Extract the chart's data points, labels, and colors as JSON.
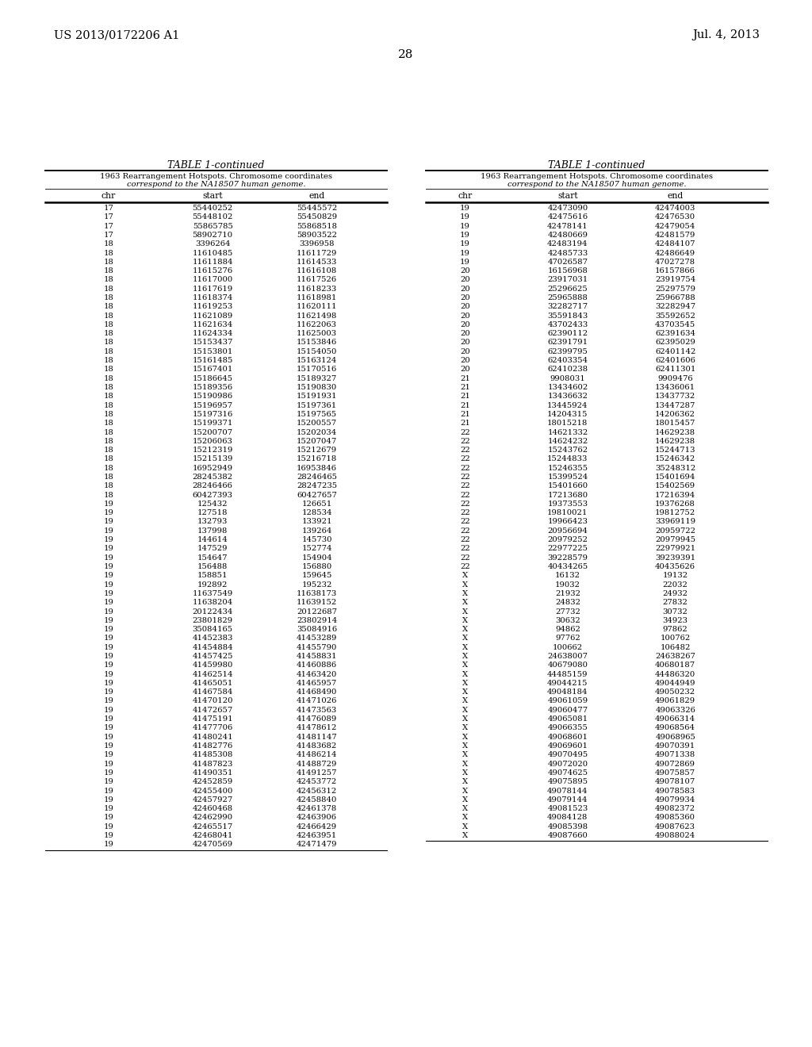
{
  "page_number": "28",
  "patent_left": "US 2013/0172206 A1",
  "patent_right": "Jul. 4, 2013",
  "table_title": "TABLE 1-continued",
  "table_subtitle_1": "1963 Rearrangement Hotspots. Chromosome coordinates",
  "table_subtitle_2": "correspond to the NA18507 human genome.",
  "col_headers": [
    "chr",
    "start",
    "end"
  ],
  "left_data": [
    [
      "17",
      "55440252",
      "55445572"
    ],
    [
      "17",
      "55448102",
      "55450829"
    ],
    [
      "17",
      "55865785",
      "55868518"
    ],
    [
      "17",
      "58902710",
      "58903522"
    ],
    [
      "18",
      "3396264",
      "3396958"
    ],
    [
      "18",
      "11610485",
      "11611729"
    ],
    [
      "18",
      "11611884",
      "11614533"
    ],
    [
      "18",
      "11615276",
      "11616108"
    ],
    [
      "18",
      "11617000",
      "11617526"
    ],
    [
      "18",
      "11617619",
      "11618233"
    ],
    [
      "18",
      "11618374",
      "11618981"
    ],
    [
      "18",
      "11619253",
      "11620111"
    ],
    [
      "18",
      "11621089",
      "11621498"
    ],
    [
      "18",
      "11621634",
      "11622063"
    ],
    [
      "18",
      "11624334",
      "11625003"
    ],
    [
      "18",
      "15153437",
      "15153846"
    ],
    [
      "18",
      "15153801",
      "15154050"
    ],
    [
      "18",
      "15161485",
      "15163124"
    ],
    [
      "18",
      "15167401",
      "15170516"
    ],
    [
      "18",
      "15186645",
      "15189327"
    ],
    [
      "18",
      "15189356",
      "15190830"
    ],
    [
      "18",
      "15190986",
      "15191931"
    ],
    [
      "18",
      "15196957",
      "15197361"
    ],
    [
      "18",
      "15197316",
      "15197565"
    ],
    [
      "18",
      "15199371",
      "15200557"
    ],
    [
      "18",
      "15200707",
      "15202034"
    ],
    [
      "18",
      "15206063",
      "15207047"
    ],
    [
      "18",
      "15212319",
      "15212679"
    ],
    [
      "18",
      "15215139",
      "15216718"
    ],
    [
      "18",
      "16952949",
      "16953846"
    ],
    [
      "18",
      "28245382",
      "28246465"
    ],
    [
      "18",
      "28246466",
      "28247235"
    ],
    [
      "18",
      "60427393",
      "60427657"
    ],
    [
      "19",
      "125432",
      "126651"
    ],
    [
      "19",
      "127518",
      "128534"
    ],
    [
      "19",
      "132793",
      "133921"
    ],
    [
      "19",
      "137998",
      "139264"
    ],
    [
      "19",
      "144614",
      "145730"
    ],
    [
      "19",
      "147529",
      "152774"
    ],
    [
      "19",
      "154647",
      "154904"
    ],
    [
      "19",
      "156488",
      "156880"
    ],
    [
      "19",
      "158851",
      "159645"
    ],
    [
      "19",
      "192892",
      "195232"
    ],
    [
      "19",
      "11637549",
      "11638173"
    ],
    [
      "19",
      "11638204",
      "11639152"
    ],
    [
      "19",
      "20122434",
      "20122687"
    ],
    [
      "19",
      "23801829",
      "23802914"
    ],
    [
      "19",
      "35084165",
      "35084916"
    ],
    [
      "19",
      "41452383",
      "41453289"
    ],
    [
      "19",
      "41454884",
      "41455790"
    ],
    [
      "19",
      "41457425",
      "41458831"
    ],
    [
      "19",
      "41459980",
      "41460886"
    ],
    [
      "19",
      "41462514",
      "41463420"
    ],
    [
      "19",
      "41465051",
      "41465957"
    ],
    [
      "19",
      "41467584",
      "41468490"
    ],
    [
      "19",
      "41470120",
      "41471026"
    ],
    [
      "19",
      "41472657",
      "41473563"
    ],
    [
      "19",
      "41475191",
      "41476089"
    ],
    [
      "19",
      "41477706",
      "41478612"
    ],
    [
      "19",
      "41480241",
      "41481147"
    ],
    [
      "19",
      "41482776",
      "41483682"
    ],
    [
      "19",
      "41485308",
      "41486214"
    ],
    [
      "19",
      "41487823",
      "41488729"
    ],
    [
      "19",
      "41490351",
      "41491257"
    ],
    [
      "19",
      "42452859",
      "42453772"
    ],
    [
      "19",
      "42455400",
      "42456312"
    ],
    [
      "19",
      "42457927",
      "42458840"
    ],
    [
      "19",
      "42460468",
      "42461378"
    ],
    [
      "19",
      "42462990",
      "42463906"
    ],
    [
      "19",
      "42465517",
      "42466429"
    ],
    [
      "19",
      "42468041",
      "42463951"
    ],
    [
      "19",
      "42470569",
      "42471479"
    ]
  ],
  "right_data": [
    [
      "19",
      "42473090",
      "42474003"
    ],
    [
      "19",
      "42475616",
      "42476530"
    ],
    [
      "19",
      "42478141",
      "42479054"
    ],
    [
      "19",
      "42480669",
      "42481579"
    ],
    [
      "19",
      "42483194",
      "42484107"
    ],
    [
      "19",
      "42485733",
      "42486649"
    ],
    [
      "19",
      "47026587",
      "47027278"
    ],
    [
      "20",
      "16156968",
      "16157866"
    ],
    [
      "20",
      "23917031",
      "23919754"
    ],
    [
      "20",
      "25296625",
      "25297579"
    ],
    [
      "20",
      "25965888",
      "25966788"
    ],
    [
      "20",
      "32282717",
      "32282947"
    ],
    [
      "20",
      "35591843",
      "35592652"
    ],
    [
      "20",
      "43702433",
      "43703545"
    ],
    [
      "20",
      "62390112",
      "62391634"
    ],
    [
      "20",
      "62391791",
      "62395029"
    ],
    [
      "20",
      "62399795",
      "62401142"
    ],
    [
      "20",
      "62403354",
      "62401606"
    ],
    [
      "20",
      "62410238",
      "62411301"
    ],
    [
      "21",
      "9908031",
      "9909476"
    ],
    [
      "21",
      "13434602",
      "13436061"
    ],
    [
      "21",
      "13436632",
      "13437732"
    ],
    [
      "21",
      "13445924",
      "13447287"
    ],
    [
      "21",
      "14204315",
      "14206362"
    ],
    [
      "21",
      "18015218",
      "18015457"
    ],
    [
      "22",
      "14621332",
      "14629238"
    ],
    [
      "22",
      "14624232",
      "14629238"
    ],
    [
      "22",
      "15243762",
      "15244713"
    ],
    [
      "22",
      "15244833",
      "15246342"
    ],
    [
      "22",
      "15246355",
      "35248312"
    ],
    [
      "22",
      "15399524",
      "15401694"
    ],
    [
      "22",
      "15401660",
      "15402569"
    ],
    [
      "22",
      "17213680",
      "17216394"
    ],
    [
      "22",
      "19373553",
      "19376268"
    ],
    [
      "22",
      "19810021",
      "19812752"
    ],
    [
      "22",
      "19966423",
      "33969119"
    ],
    [
      "22",
      "20956694",
      "20959722"
    ],
    [
      "22",
      "20979252",
      "20979945"
    ],
    [
      "22",
      "22977225",
      "22979921"
    ],
    [
      "22",
      "39228579",
      "39239391"
    ],
    [
      "22",
      "40434265",
      "40435626"
    ],
    [
      "X",
      "16132",
      "19132"
    ],
    [
      "X",
      "19032",
      "22032"
    ],
    [
      "X",
      "21932",
      "24932"
    ],
    [
      "X",
      "24832",
      "27832"
    ],
    [
      "X",
      "27732",
      "30732"
    ],
    [
      "X",
      "30632",
      "34923"
    ],
    [
      "X",
      "94862",
      "97862"
    ],
    [
      "X",
      "97762",
      "100762"
    ],
    [
      "X",
      "100662",
      "106482"
    ],
    [
      "X",
      "24638007",
      "24638267"
    ],
    [
      "X",
      "40679080",
      "40680187"
    ],
    [
      "X",
      "44485159",
      "44486320"
    ],
    [
      "X",
      "49044215",
      "49044949"
    ],
    [
      "X",
      "49048184",
      "49050232"
    ],
    [
      "X",
      "49061059",
      "49061829"
    ],
    [
      "X",
      "49060477",
      "49063326"
    ],
    [
      "X",
      "49065081",
      "49066314"
    ],
    [
      "X",
      "49066355",
      "49068564"
    ],
    [
      "X",
      "49068601",
      "49068965"
    ],
    [
      "X",
      "49069601",
      "49070391"
    ],
    [
      "X",
      "49070495",
      "49071338"
    ],
    [
      "X",
      "49072020",
      "49072869"
    ],
    [
      "X",
      "49074625",
      "49075857"
    ],
    [
      "X",
      "49075895",
      "49078107"
    ],
    [
      "X",
      "49078144",
      "49078583"
    ],
    [
      "X",
      "49079144",
      "49079934"
    ],
    [
      "X",
      "49081523",
      "49082372"
    ],
    [
      "X",
      "49084128",
      "49085360"
    ],
    [
      "X",
      "49085398",
      "49087623"
    ],
    [
      "X",
      "49087660",
      "49088024"
    ]
  ],
  "bg_color": "#ffffff",
  "text_color": "#000000"
}
